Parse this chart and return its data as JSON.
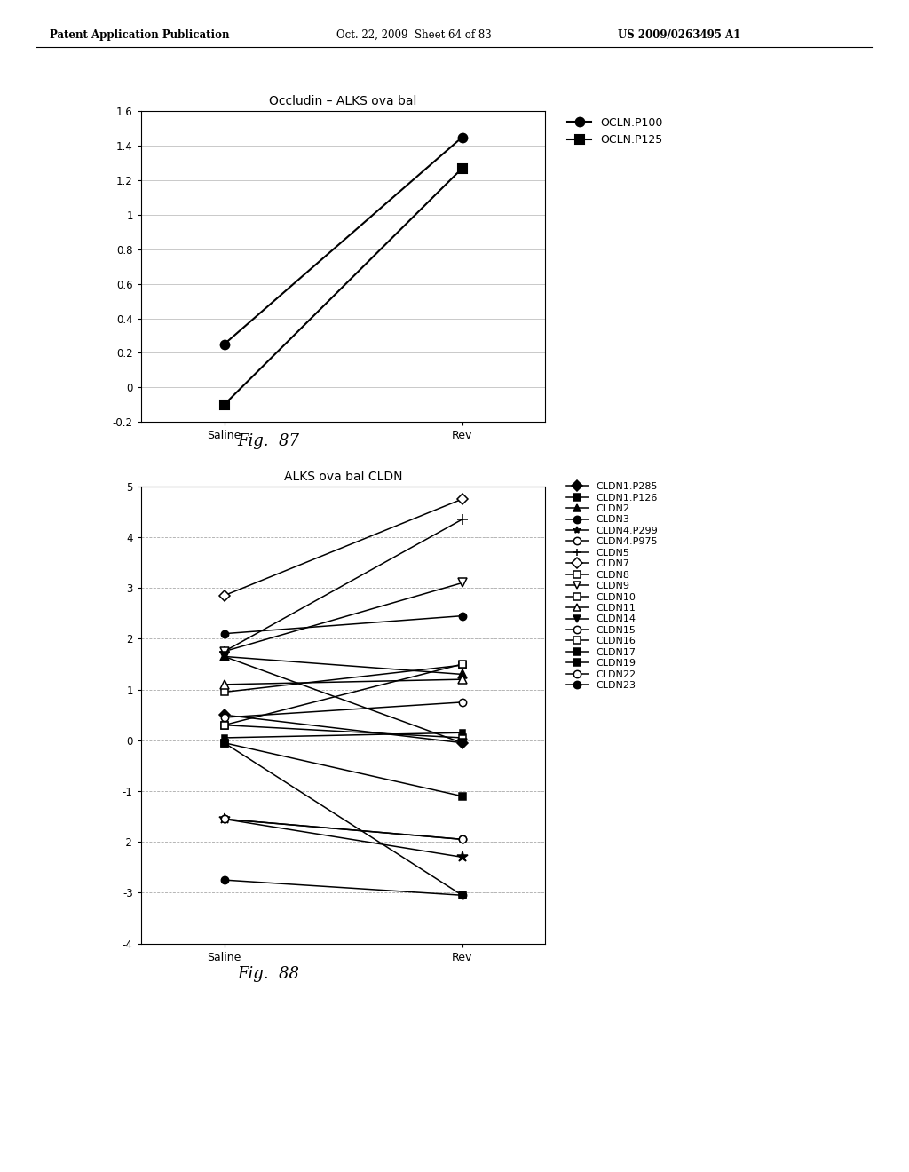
{
  "fig87": {
    "title": "Occludin – ALKS ova bal",
    "xlabel_ticks": [
      "Saline",
      "Rev"
    ],
    "ylim": [
      -0.2,
      1.6
    ],
    "yticks": [
      -0.2,
      0,
      0.2,
      0.4,
      0.6,
      0.8,
      1.0,
      1.2,
      1.4,
      1.6
    ],
    "series": [
      {
        "label": "OCLN.P100",
        "saline": 0.25,
        "rev": 1.45,
        "marker": "o",
        "fillstyle": "full"
      },
      {
        "label": "OCLN.P125",
        "saline": -0.1,
        "rev": 1.27,
        "marker": "s",
        "fillstyle": "full"
      }
    ]
  },
  "fig88": {
    "title": "ALKS ova bal CLDN",
    "xlabel_ticks": [
      "Saline",
      "Rev"
    ],
    "ylim": [
      -4,
      5
    ],
    "yticks": [
      -4,
      -3,
      -2,
      -1,
      0,
      1,
      2,
      3,
      4,
      5
    ],
    "series": [
      {
        "label": "CLDN1.P285",
        "saline": 0.5,
        "rev": -0.05,
        "marker": "D",
        "fillstyle": "full"
      },
      {
        "label": "CLDN1.P126",
        "saline": -0.05,
        "rev": -1.1,
        "marker": "s",
        "fillstyle": "full"
      },
      {
        "label": "CLDN2",
        "saline": 1.65,
        "rev": 1.3,
        "marker": "^",
        "fillstyle": "full"
      },
      {
        "label": "CLDN3",
        "saline": 2.1,
        "rev": 2.45,
        "marker": "o",
        "fillstyle": "full"
      },
      {
        "label": "CLDN4.P299",
        "saline": -1.55,
        "rev": -2.3,
        "marker": "*",
        "fillstyle": "full"
      },
      {
        "label": "CLDN4.P975",
        "saline": -1.55,
        "rev": -1.95,
        "marker": "o",
        "fillstyle": "none"
      },
      {
        "label": "CLDN5",
        "saline": 1.75,
        "rev": 4.35,
        "marker": "+",
        "fillstyle": "full"
      },
      {
        "label": "CLDN7",
        "saline": 2.85,
        "rev": 4.75,
        "marker": "D",
        "fillstyle": "none"
      },
      {
        "label": "CLDN8",
        "saline": 0.95,
        "rev": 1.48,
        "marker": "s",
        "fillstyle": "none"
      },
      {
        "label": "CLDN9",
        "saline": 1.75,
        "rev": 3.1,
        "marker": "v",
        "fillstyle": "none"
      },
      {
        "label": "CLDN10",
        "saline": 0.3,
        "rev": 0.05,
        "marker": "s",
        "fillstyle": "none",
        "hatch": true
      },
      {
        "label": "CLDN11",
        "saline": 1.1,
        "rev": 1.2,
        "marker": "^",
        "fillstyle": "none"
      },
      {
        "label": "CLDN14",
        "saline": 1.65,
        "rev": -0.05,
        "marker": "v",
        "fillstyle": "full"
      },
      {
        "label": "CLDN15",
        "saline": 0.45,
        "rev": 0.75,
        "marker": "o",
        "fillstyle": "none"
      },
      {
        "label": "CLDN16",
        "saline": 0.3,
        "rev": 1.5,
        "marker": "s",
        "fillstyle": "none"
      },
      {
        "label": "CLDN17",
        "saline": 0.05,
        "rev": 0.15,
        "marker": "s",
        "fillstyle": "full"
      },
      {
        "label": "CLDN19",
        "saline": -0.05,
        "rev": -3.05,
        "marker": "s",
        "fillstyle": "full"
      },
      {
        "label": "CLDN22",
        "saline": -1.55,
        "rev": -1.95,
        "marker": "o",
        "fillstyle": "none"
      },
      {
        "label": "CLDN23",
        "saline": -2.75,
        "rev": -3.05,
        "marker": "o",
        "fillstyle": "full"
      }
    ]
  },
  "header_left": "Patent Application Publication",
  "header_mid": "Oct. 22, 2009  Sheet 64 of 83",
  "header_right": "US 2009/0263495 A1",
  "fig87_label": "Fig.  87",
  "fig88_label": "Fig.  88",
  "background_color": "#ffffff"
}
